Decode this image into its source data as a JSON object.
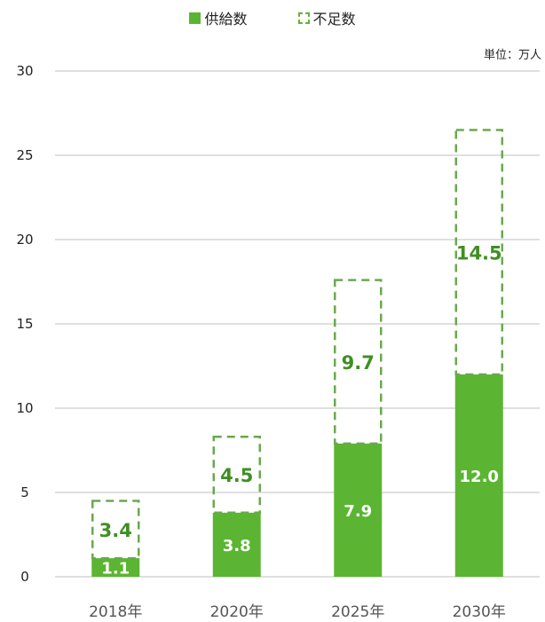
{
  "legend": {
    "supply": "供給数",
    "shortage": "不足数"
  },
  "unit": "単位：万人",
  "colors": {
    "supply": "#5bb532",
    "shortage_border": "#6aa84f",
    "shortage_label": "#3f8f24",
    "grid": "#bfbfbf"
  },
  "chart_data": {
    "type": "bar",
    "stacked": true,
    "categories": [
      "2018年",
      "2020年",
      "2025年",
      "2030年"
    ],
    "series": [
      {
        "name": "供給数",
        "values": [
          1.1,
          3.8,
          7.9,
          12.0
        ],
        "labels": [
          "1.1",
          "3.8",
          "7.9",
          "12.0"
        ]
      },
      {
        "name": "不足数",
        "values": [
          3.4,
          4.5,
          9.7,
          14.5
        ],
        "labels": [
          "3.4",
          "4.5",
          "9.7",
          "14.5"
        ]
      }
    ],
    "ylim": [
      0,
      30
    ],
    "yticks": [
      "0",
      "5",
      "10",
      "15",
      "20",
      "25",
      "30"
    ],
    "grid": true,
    "legend_position": "top-center"
  }
}
